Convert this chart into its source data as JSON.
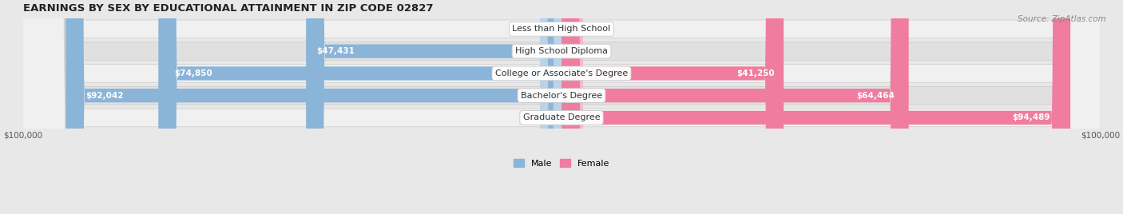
{
  "title": "EARNINGS BY SEX BY EDUCATIONAL ATTAINMENT IN ZIP CODE 02827",
  "source": "Source: ZipAtlas.com",
  "categories": [
    "Less than High School",
    "High School Diploma",
    "College or Associate's Degree",
    "Bachelor's Degree",
    "Graduate Degree"
  ],
  "male_values": [
    0,
    47431,
    74850,
    92042,
    0
  ],
  "female_values": [
    0,
    0,
    41250,
    64464,
    94489
  ],
  "male_color": "#8ab4d8",
  "female_color": "#f07ca0",
  "male_color_light": "#b8d4ea",
  "female_color_light": "#f5b8cb",
  "bar_height": 0.62,
  "xlim": 100000,
  "axis_label_left": "$100,000",
  "axis_label_right": "$100,000",
  "background_color": "#e8e8e8",
  "row_bg_odd": "#f0f0f0",
  "row_bg_even": "#e0e0e0",
  "title_fontsize": 9.5,
  "source_fontsize": 7.5,
  "label_fontsize": 8,
  "bar_value_fontsize": 7.5,
  "legend_male": "Male",
  "legend_female": "Female"
}
